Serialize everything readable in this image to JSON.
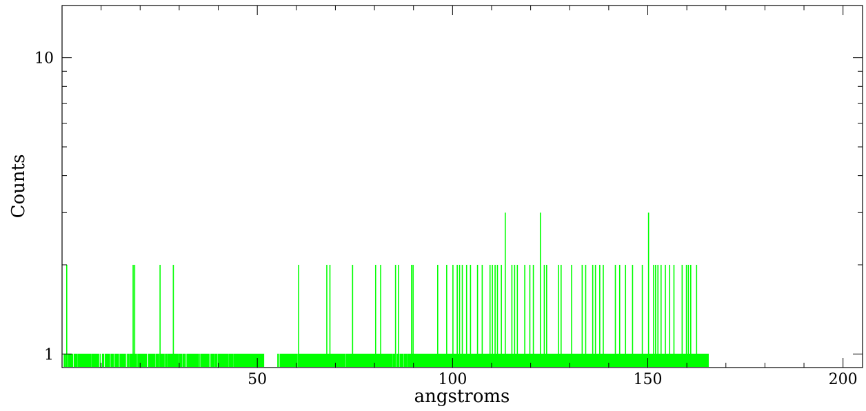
{
  "chart_data": {
    "type": "line",
    "style": "histogram-steps",
    "xlabel": "angstroms",
    "ylabel": "Counts",
    "xlim": [
      0,
      205
    ],
    "ylim": [
      0.9,
      15
    ],
    "y_scale": "log",
    "grid": false,
    "series_color": "#00ff00",
    "x_ticks": [
      50,
      100,
      150,
      200
    ],
    "x_tick_labels": [
      "50",
      "100",
      "150",
      "200"
    ],
    "y_ticks": [
      1,
      10
    ],
    "y_tick_labels": [
      "1",
      "10"
    ],
    "data_range": [
      0.5,
      165.5
    ],
    "gaps": [
      [
        51.8,
        55.2
      ]
    ],
    "spikes": [
      {
        "x": 1.2,
        "y": 2
      },
      {
        "x": 18.2,
        "y": 2
      },
      {
        "x": 18.6,
        "y": 2
      },
      {
        "x": 25.1,
        "y": 2
      },
      {
        "x": 28.5,
        "y": 2
      },
      {
        "x": 60.6,
        "y": 2
      },
      {
        "x": 67.8,
        "y": 2
      },
      {
        "x": 68.6,
        "y": 2
      },
      {
        "x": 74.4,
        "y": 2
      },
      {
        "x": 80.3,
        "y": 2
      },
      {
        "x": 81.6,
        "y": 2
      },
      {
        "x": 85.4,
        "y": 2
      },
      {
        "x": 86.2,
        "y": 2
      },
      {
        "x": 89.5,
        "y": 2
      },
      {
        "x": 89.9,
        "y": 2
      },
      {
        "x": 96.2,
        "y": 2
      },
      {
        "x": 98.5,
        "y": 2
      },
      {
        "x": 100.1,
        "y": 2
      },
      {
        "x": 101.2,
        "y": 2
      },
      {
        "x": 101.8,
        "y": 2
      },
      {
        "x": 102.5,
        "y": 2
      },
      {
        "x": 103.6,
        "y": 2
      },
      {
        "x": 104.6,
        "y": 2
      },
      {
        "x": 106.4,
        "y": 2
      },
      {
        "x": 107.6,
        "y": 2
      },
      {
        "x": 109.6,
        "y": 2
      },
      {
        "x": 110.2,
        "y": 2
      },
      {
        "x": 110.9,
        "y": 2
      },
      {
        "x": 111.5,
        "y": 2
      },
      {
        "x": 112.5,
        "y": 2
      },
      {
        "x": 113.5,
        "y": 3
      },
      {
        "x": 115.2,
        "y": 2
      },
      {
        "x": 115.9,
        "y": 2
      },
      {
        "x": 116.6,
        "y": 2
      },
      {
        "x": 118.5,
        "y": 2
      },
      {
        "x": 119.8,
        "y": 2
      },
      {
        "x": 120.7,
        "y": 2
      },
      {
        "x": 122.5,
        "y": 3
      },
      {
        "x": 123.5,
        "y": 2
      },
      {
        "x": 124.1,
        "y": 2
      },
      {
        "x": 127.1,
        "y": 2
      },
      {
        "x": 127.8,
        "y": 2
      },
      {
        "x": 130.5,
        "y": 2
      },
      {
        "x": 133.2,
        "y": 2
      },
      {
        "x": 134.1,
        "y": 2
      },
      {
        "x": 135.9,
        "y": 2
      },
      {
        "x": 136.6,
        "y": 2
      },
      {
        "x": 137.7,
        "y": 2
      },
      {
        "x": 138.6,
        "y": 2
      },
      {
        "x": 141.7,
        "y": 2
      },
      {
        "x": 142.8,
        "y": 2
      },
      {
        "x": 144.3,
        "y": 2
      },
      {
        "x": 146.1,
        "y": 2
      },
      {
        "x": 148.6,
        "y": 2
      },
      {
        "x": 150.2,
        "y": 3
      },
      {
        "x": 151.5,
        "y": 2
      },
      {
        "x": 152.0,
        "y": 2
      },
      {
        "x": 152.6,
        "y": 2
      },
      {
        "x": 153.4,
        "y": 2
      },
      {
        "x": 154.5,
        "y": 2
      },
      {
        "x": 155.6,
        "y": 2
      },
      {
        "x": 156.7,
        "y": 2
      },
      {
        "x": 158.8,
        "y": 2
      },
      {
        "x": 159.9,
        "y": 2
      },
      {
        "x": 160.4,
        "y": 2
      },
      {
        "x": 161.0,
        "y": 2
      },
      {
        "x": 162.5,
        "y": 2
      }
    ]
  }
}
